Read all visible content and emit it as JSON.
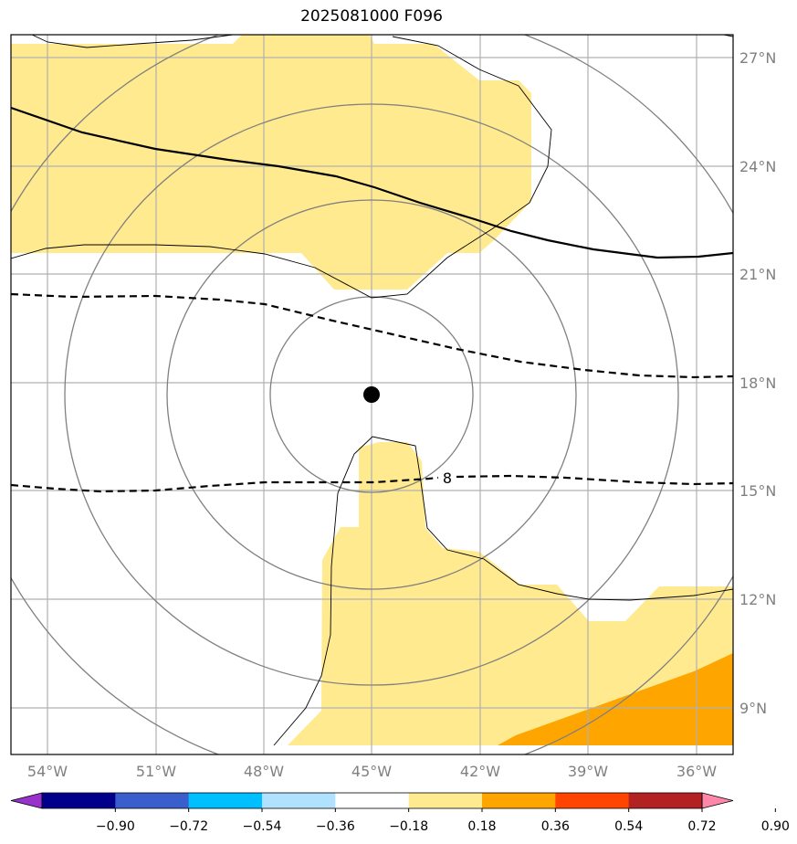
{
  "title": "2025081000 F096",
  "longitude_labels": [
    "54°W",
    "51°W",
    "48°W",
    "45°W",
    "42°W",
    "39°W",
    "36°W"
  ],
  "latitude_labels": [
    "27°N",
    "24°N",
    "21°N",
    "18°N",
    "15°N",
    "12°N",
    "9°N"
  ],
  "contour_label": "8",
  "colorbar": {
    "tick_labels": [
      "−0.90",
      "−0.72",
      "−0.54",
      "−0.36",
      "−0.18",
      "0.18",
      "0.36",
      "0.54",
      "0.72",
      "0.90"
    ],
    "colors": [
      "#9932cc",
      "#00008b",
      "#3a5fcd",
      "#00bfff",
      "#b0e2ff",
      "#ffffff",
      "#ffea8f",
      "#ffa500",
      "#ff4500",
      "#b22222",
      "#ff88aa"
    ]
  },
  "colors": {
    "shade_light": "#ffea8f",
    "shade_orange": "#ffa500",
    "range_ring": "#808080",
    "grid": "#b0b0b0",
    "coastline": "#000000",
    "storm_center": "#000000",
    "tick_label": "#808080"
  }
}
